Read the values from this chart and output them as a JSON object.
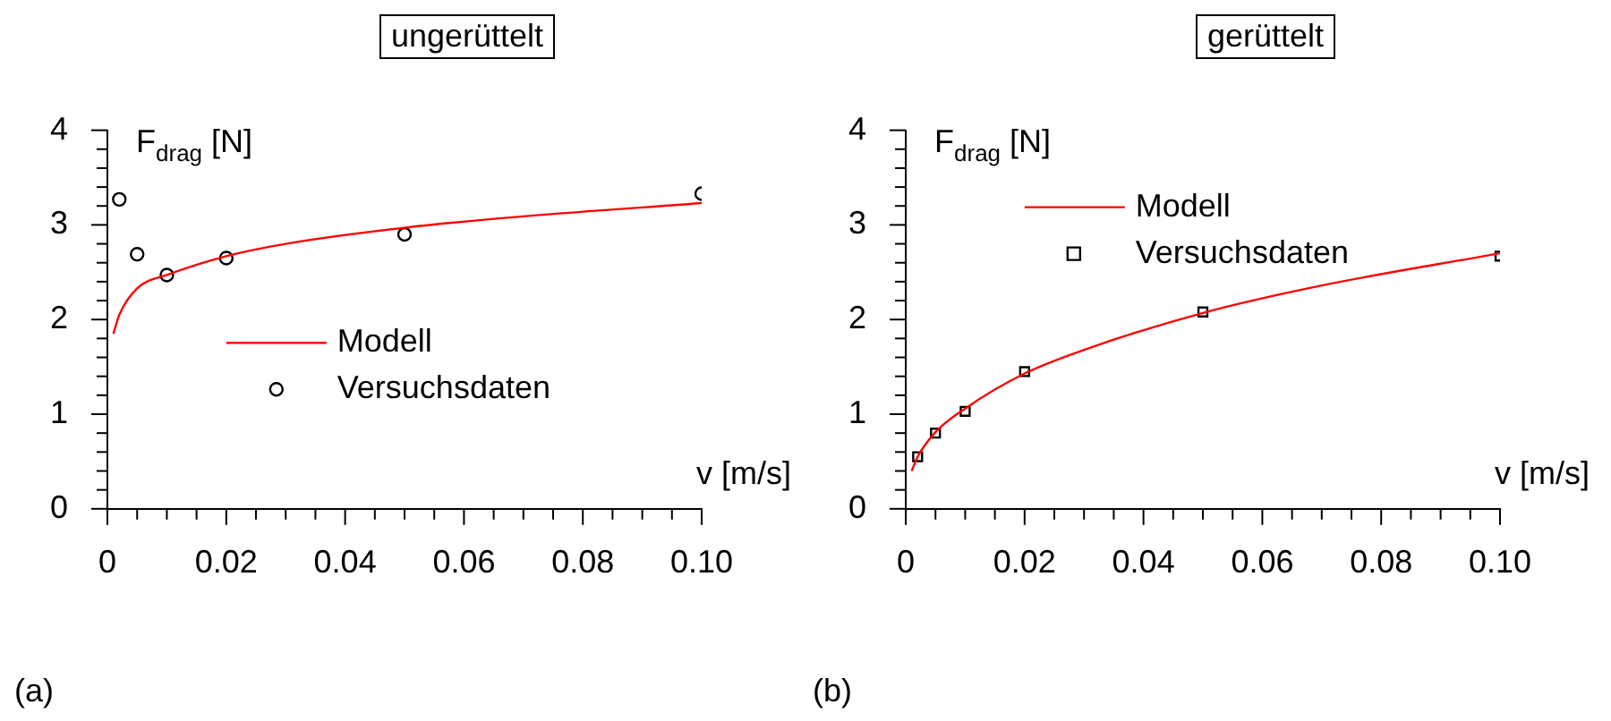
{
  "chart_data": [
    {
      "type": "scatter",
      "title": "ungerüttelt",
      "xlabel": "v [m/s]",
      "ylabel": "F$_{drag}$ [N]",
      "annotations": [
        "(a)"
      ],
      "xlim": [
        0,
        0.1
      ],
      "ylim": [
        0,
        4
      ],
      "xticks": [
        0,
        {
          "value": 0.005,
          "label": null
        },
        {
          "value": 0.01,
          "label": null
        },
        {
          "value": 0.015,
          "label": null
        },
        0.02,
        {
          "value": 0.025,
          "label": null
        },
        {
          "value": 0.03,
          "label": null
        },
        {
          "value": 0.035,
          "label": null
        },
        0.04,
        {
          "value": 0.045,
          "label": null
        },
        {
          "value": 0.05,
          "label": null
        },
        {
          "value": 0.055,
          "label": null
        },
        0.06,
        {
          "value": 0.065,
          "label": null
        },
        {
          "value": 0.07,
          "label": null
        },
        {
          "value": 0.075,
          "label": null
        },
        0.08,
        {
          "value": 0.085,
          "label": null
        },
        {
          "value": 0.09,
          "label": null
        },
        {
          "value": 0.095,
          "label": null
        },
        {
          "value": 0.1,
          "label": "0.10"
        }
      ],
      "yticks": [
        0,
        {
          "value": 0.2,
          "label": null
        },
        {
          "value": 0.4,
          "label": null
        },
        {
          "value": 0.6,
          "label": null
        },
        {
          "value": 0.8,
          "label": null
        },
        1,
        {
          "value": 1.2,
          "label": null
        },
        {
          "value": 1.4,
          "label": null
        },
        {
          "value": 1.6,
          "label": null
        },
        {
          "value": 1.8,
          "label": null
        },
        2,
        {
          "value": 2.2,
          "label": null
        },
        {
          "value": 2.4,
          "label": null
        },
        {
          "value": 2.6,
          "label": null
        },
        {
          "value": 2.8,
          "label": null
        },
        3,
        {
          "value": 3.2,
          "label": null
        },
        {
          "value": 3.4,
          "label": null
        },
        {
          "value": 3.6,
          "label": null
        },
        {
          "value": 3.8,
          "label": null
        },
        4
      ],
      "grid": false,
      "legend": "center",
      "series": [
        {
          "name": "Modell",
          "type": "line",
          "marker": "none",
          "color": "#ff0000",
          "x": [
            0.001,
            0.002,
            0.005,
            0.01,
            0.02,
            0.03,
            0.05,
            0.07,
            0.1
          ],
          "values": [
            1.85,
            2.05,
            2.33,
            2.47,
            2.67,
            2.8,
            2.97,
            3.09,
            3.23
          ]
        },
        {
          "name": "Versuchsdaten",
          "type": "scatter",
          "marker": "circle",
          "color": "#000000",
          "x": [
            0.002,
            0.005,
            0.01,
            0.02,
            0.05,
            0.1
          ],
          "values": [
            3.27,
            2.69,
            2.47,
            2.65,
            2.9,
            3.33
          ]
        }
      ]
    },
    {
      "type": "scatter",
      "title": "gerüttelt",
      "xlabel": "v [m/s]",
      "ylabel": "F$_{drag}$ [N]",
      "annotations": [
        "(b)"
      ],
      "xlim": [
        0,
        0.1
      ],
      "ylim": [
        0,
        4
      ],
      "xticks": [
        0,
        {
          "value": 0.005,
          "label": null
        },
        {
          "value": 0.01,
          "label": null
        },
        {
          "value": 0.015,
          "label": null
        },
        0.02,
        {
          "value": 0.025,
          "label": null
        },
        {
          "value": 0.03,
          "label": null
        },
        {
          "value": 0.035,
          "label": null
        },
        0.04,
        {
          "value": 0.045,
          "label": null
        },
        {
          "value": 0.05,
          "label": null
        },
        {
          "value": 0.055,
          "label": null
        },
        0.06,
        {
          "value": 0.065,
          "label": null
        },
        {
          "value": 0.07,
          "label": null
        },
        {
          "value": 0.075,
          "label": null
        },
        0.08,
        {
          "value": 0.085,
          "label": null
        },
        {
          "value": 0.09,
          "label": null
        },
        {
          "value": 0.095,
          "label": null
        },
        {
          "value": 0.1,
          "label": "0.10"
        }
      ],
      "yticks": [
        0,
        {
          "value": 0.2,
          "label": null
        },
        {
          "value": 0.4,
          "label": null
        },
        {
          "value": 0.6,
          "label": null
        },
        {
          "value": 0.8,
          "label": null
        },
        1,
        {
          "value": 1.2,
          "label": null
        },
        {
          "value": 1.4,
          "label": null
        },
        {
          "value": 1.6,
          "label": null
        },
        {
          "value": 1.8,
          "label": null
        },
        2,
        {
          "value": 2.2,
          "label": null
        },
        {
          "value": 2.4,
          "label": null
        },
        {
          "value": 2.6,
          "label": null
        },
        {
          "value": 2.8,
          "label": null
        },
        3,
        {
          "value": 3.2,
          "label": null
        },
        {
          "value": 3.4,
          "label": null
        },
        {
          "value": 3.6,
          "label": null
        },
        {
          "value": 3.8,
          "label": null
        },
        4
      ],
      "grid": false,
      "legend": "top",
      "series": [
        {
          "name": "Modell",
          "type": "line",
          "marker": "none",
          "color": "#ff0000",
          "x": [
            0.001,
            0.002,
            0.005,
            0.01,
            0.02,
            0.03,
            0.05,
            0.07,
            0.1
          ],
          "values": [
            0.4,
            0.55,
            0.81,
            1.06,
            1.43,
            1.68,
            2.07,
            2.36,
            2.7
          ]
        },
        {
          "name": "Versuchsdaten",
          "type": "scatter",
          "marker": "square",
          "color": "#000000",
          "x": [
            0.002,
            0.005,
            0.01,
            0.02,
            0.05,
            0.1
          ],
          "values": [
            0.55,
            0.8,
            1.03,
            1.45,
            2.08,
            2.67
          ]
        }
      ]
    }
  ]
}
